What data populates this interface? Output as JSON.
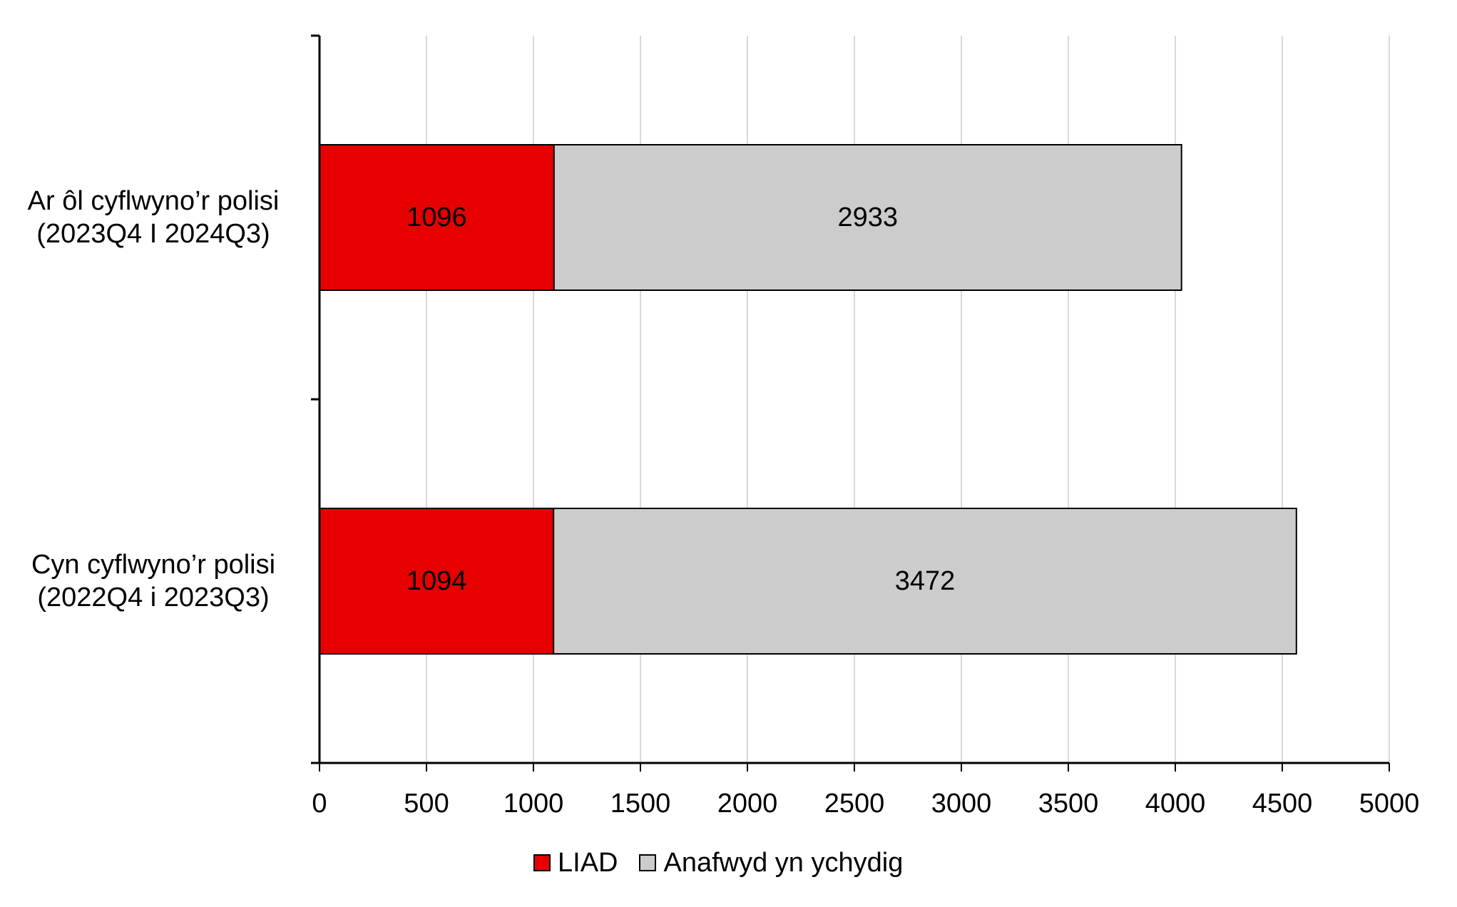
{
  "chart_data": {
    "type": "bar",
    "orientation": "horizontal",
    "stacked": true,
    "title": "",
    "xlabel": "",
    "ylabel": "",
    "xlim": [
      0,
      5000
    ],
    "x_ticks": [
      0,
      500,
      1000,
      1500,
      2000,
      2500,
      3000,
      3500,
      4000,
      4500,
      5000
    ],
    "x_tick_labels": [
      "0",
      "500",
      "1000",
      "1500",
      "2000",
      "2500",
      "3000",
      "3500",
      "4000",
      "4500",
      "5000"
    ],
    "grid": {
      "vertical": true,
      "horizontal": false,
      "color": "#d9d9d9"
    },
    "categories": [
      {
        "line1": "Ar ôl cyflwyno’r polisi",
        "line2": "(2023Q4 I 2024Q3)"
      },
      {
        "line1": "Cyn cyflwyno’r polisi",
        "line2": "(2022Q4 i 2023Q3)"
      }
    ],
    "category_order_top_to_bottom": [
      "Ar ôl cyflwyno’r polisi (2023Q4 I 2024Q3)",
      "Cyn cyflwyno’r polisi (2022Q4 i 2023Q3)"
    ],
    "series": [
      {
        "name": "LIAD",
        "color": "#e60000",
        "values": [
          1096,
          1094
        ],
        "labels": [
          "1096",
          "1094"
        ]
      },
      {
        "name": "Anafwyd yn ychydig",
        "color": "#cccccc",
        "values": [
          2933,
          3472
        ],
        "labels": [
          "2933",
          "3472"
        ]
      }
    ],
    "legend": {
      "position": "bottom",
      "entries": [
        "LIAD",
        "Anafwyd yn ychydig"
      ]
    },
    "data_labels": true
  }
}
